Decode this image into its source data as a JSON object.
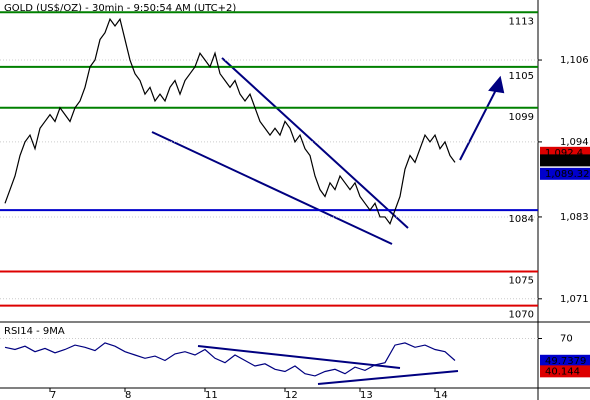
{
  "chart_data": [
    {
      "type": "line",
      "title": "GOLD (US$/OZ) - 30min - 9:50:54 AM (UTC+2)",
      "color": "#000000",
      "categories": [
        null,
        null,
        null,
        null,
        null,
        null,
        null,
        null,
        null,
        "7",
        null,
        null,
        null,
        null,
        null,
        null,
        null,
        null,
        null,
        null,
        null,
        null,
        null,
        null,
        "8",
        null,
        null,
        null,
        null,
        null,
        null,
        null,
        null,
        null,
        null,
        null,
        null,
        null,
        null,
        null,
        "11",
        null,
        null,
        null,
        null,
        null,
        null,
        null,
        null,
        null,
        null,
        null,
        null,
        null,
        null,
        null,
        "12",
        null,
        null,
        null,
        null,
        null,
        null,
        null,
        null,
        null,
        null,
        null,
        null,
        null,
        null,
        "13",
        null,
        null,
        null,
        null,
        null,
        null,
        null,
        null,
        null,
        null,
        null,
        null,
        null,
        null,
        "14",
        null,
        null,
        null,
        null
      ],
      "values": [
        1085,
        1087,
        1089,
        1092,
        1094,
        1095,
        1093,
        1096,
        1097,
        1098,
        1097,
        1099,
        1098,
        1097,
        1099,
        1100,
        1102,
        1105,
        1106,
        1109,
        1110,
        1112,
        1111,
        1112,
        1109,
        1106,
        1104,
        1103,
        1101,
        1102,
        1100,
        1101,
        1100,
        1102,
        1103,
        1101,
        1103,
        1104,
        1105,
        1107,
        1106,
        1105,
        1107,
        1104,
        1103,
        1102,
        1103,
        1101,
        1100,
        1101,
        1099,
        1097,
        1096,
        1095,
        1096,
        1095,
        1097,
        1096,
        1094,
        1095,
        1093,
        1092,
        1089,
        1087,
        1086,
        1088,
        1087,
        1089,
        1088,
        1087,
        1088,
        1086,
        1085,
        1084,
        1085,
        1083,
        1083,
        1082,
        1084,
        1086,
        1090,
        1092,
        1091,
        1093,
        1095,
        1094,
        1095,
        1093,
        1094,
        1092,
        1091
      ],
      "ylim": [
        1067.6,
        1114.8
      ],
      "yticks": [
        {
          "value": 1106,
          "label": "1,106"
        },
        {
          "value": 1094,
          "label": "1,094"
        },
        {
          "value": 1083,
          "label": "1,083"
        },
        {
          "value": 1071,
          "label": "1,071"
        }
      ],
      "levels": [
        {
          "value": 1113,
          "color": "#008000"
        },
        {
          "value": 1105,
          "color": "#008000"
        },
        {
          "value": 1099,
          "color": "#008000"
        },
        {
          "value": 1084,
          "color": "#0000cc"
        },
        {
          "value": 1075,
          "color": "#dd0000"
        },
        {
          "value": 1070,
          "color": "#dd0000"
        }
      ],
      "price_tags": [
        {
          "value": 1092.4,
          "label": "1,092.4",
          "color": "#dd0000"
        },
        {
          "value": 1091.29,
          "label": "1,091.29",
          "color": "#000000"
        },
        {
          "value": 1089.32,
          "label": "1,089.32",
          "color": "#0000cc"
        }
      ]
    },
    {
      "type": "line",
      "title": "RSI14 - 9MA",
      "color": "#000080",
      "values": [
        62,
        60,
        63,
        58,
        61,
        57,
        60,
        64,
        62,
        59,
        66,
        63,
        58,
        55,
        52,
        54,
        50,
        56,
        58,
        55,
        60,
        52,
        48,
        55,
        50,
        45,
        47,
        42,
        40,
        45,
        38,
        36,
        40,
        42,
        38,
        44,
        41,
        46,
        48,
        64,
        66,
        62,
        64,
        60,
        58,
        50
      ],
      "ylim": [
        25,
        85
      ],
      "yticks": [
        70
      ],
      "price_tags": [
        {
          "value": 49.7379,
          "label": "49.7379",
          "color": "#0000cc"
        },
        {
          "value": 40.144,
          "label": "40.144",
          "color": "#dd0000"
        }
      ]
    }
  ]
}
